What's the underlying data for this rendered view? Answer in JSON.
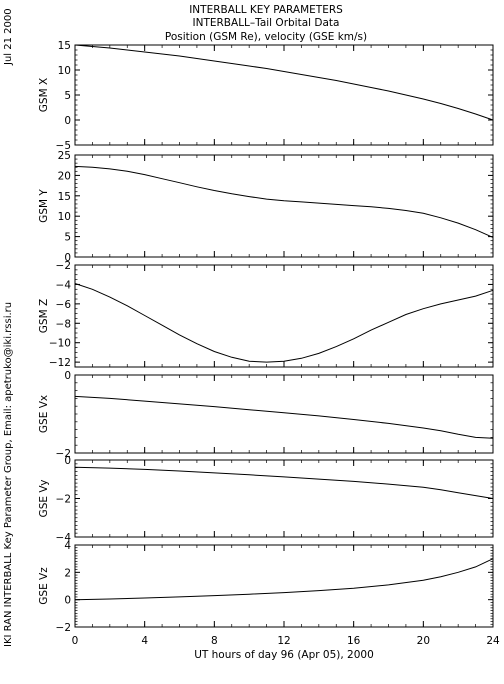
{
  "side_left_top": "Jul 21 2000",
  "side_left_bottom": "IKI RAN INTERBALL Key Parameter Group, Email: apetruko@iki.rssi.ru",
  "chart_data": {
    "type": "line",
    "title_lines": [
      "INTERBALL KEY PARAMETERS",
      "INTERBALL–Tail Orbital Data",
      "Position (GSM Re), velocity (GSE km/s)"
    ],
    "xlabel": "UT hours of day  96 (Apr 05), 2000",
    "xlim": [
      0,
      24
    ],
    "xticks": [
      0,
      4,
      8,
      12,
      16,
      20,
      24
    ],
    "xtick_labels": [
      "0",
      "4",
      "8",
      "12",
      "16",
      "20",
      "24"
    ],
    "panels": [
      {
        "ylabel": "GSM X",
        "ylim": [
          -5,
          15
        ],
        "yticks": [
          -5,
          0,
          5,
          10,
          15
        ],
        "ytick_labels": [
          "−5",
          "0",
          "5",
          "10",
          "15"
        ],
        "x": [
          0,
          1,
          2,
          3,
          4,
          5,
          6,
          7,
          8,
          9,
          10,
          11,
          12,
          13,
          14,
          15,
          16,
          17,
          18,
          19,
          20,
          21,
          22,
          23,
          24
        ],
        "y": [
          15.0,
          14.7,
          14.4,
          14.0,
          13.6,
          13.2,
          12.8,
          12.3,
          11.8,
          11.3,
          10.8,
          10.3,
          9.7,
          9.1,
          8.5,
          7.9,
          7.2,
          6.5,
          5.8,
          5.0,
          4.2,
          3.3,
          2.3,
          1.2,
          0.0
        ]
      },
      {
        "ylabel": "GSM Y",
        "ylim": [
          0,
          25
        ],
        "yticks": [
          0,
          5,
          10,
          15,
          20,
          25
        ],
        "ytick_labels": [
          "0",
          "5",
          "10",
          "15",
          "20",
          "25"
        ],
        "x": [
          0,
          1,
          2,
          3,
          4,
          5,
          6,
          7,
          8,
          9,
          10,
          11,
          12,
          13,
          14,
          15,
          16,
          17,
          18,
          19,
          20,
          21,
          22,
          23,
          24
        ],
        "y": [
          22.2,
          22.0,
          21.6,
          21.0,
          20.2,
          19.2,
          18.2,
          17.2,
          16.3,
          15.5,
          14.8,
          14.2,
          13.8,
          13.5,
          13.2,
          12.9,
          12.6,
          12.3,
          11.9,
          11.4,
          10.7,
          9.6,
          8.3,
          6.7,
          4.8
        ]
      },
      {
        "ylabel": "GSM Z",
        "ylim": [
          -12.5,
          -2
        ],
        "yticks": [
          -12,
          -10,
          -8,
          -6,
          -4,
          -2
        ],
        "ytick_labels": [
          "−12",
          "−10",
          "−8",
          "−6",
          "−4",
          "−2"
        ],
        "x": [
          0,
          1,
          2,
          3,
          4,
          5,
          6,
          7,
          8,
          9,
          10,
          11,
          12,
          13,
          14,
          15,
          16,
          17,
          18,
          19,
          20,
          21,
          22,
          23,
          24
        ],
        "y": [
          -3.9,
          -4.5,
          -5.3,
          -6.2,
          -7.2,
          -8.2,
          -9.2,
          -10.1,
          -10.9,
          -11.5,
          -11.9,
          -12.0,
          -11.9,
          -11.6,
          -11.1,
          -10.4,
          -9.6,
          -8.7,
          -7.9,
          -7.1,
          -6.5,
          -6.0,
          -5.6,
          -5.2,
          -4.6
        ]
      },
      {
        "ylabel": "GSE Vx",
        "ylim": [
          -2,
          0
        ],
        "yticks": [
          -2,
          0
        ],
        "ytick_labels": [
          "−2",
          "0"
        ],
        "x": [
          0,
          2,
          4,
          6,
          8,
          10,
          12,
          14,
          16,
          18,
          20,
          21,
          22,
          23,
          24
        ],
        "y": [
          -0.55,
          -0.6,
          -0.67,
          -0.74,
          -0.81,
          -0.89,
          -0.97,
          -1.05,
          -1.14,
          -1.24,
          -1.36,
          -1.43,
          -1.52,
          -1.6,
          -1.62
        ]
      },
      {
        "ylabel": "GSE Vy",
        "ylim": [
          -4,
          0
        ],
        "yticks": [
          -4,
          -2,
          0
        ],
        "ytick_labels": [
          "−4",
          "−2",
          "0"
        ],
        "x": [
          0,
          2,
          4,
          6,
          8,
          10,
          12,
          14,
          16,
          18,
          20,
          21,
          22,
          23,
          24
        ],
        "y": [
          -0.38,
          -0.42,
          -0.49,
          -0.57,
          -0.67,
          -0.77,
          -0.88,
          -0.99,
          -1.11,
          -1.25,
          -1.42,
          -1.55,
          -1.7,
          -1.85,
          -2.0
        ]
      },
      {
        "ylabel": "GSE Vz",
        "ylim": [
          -2,
          4
        ],
        "yticks": [
          -2,
          0,
          2,
          4
        ],
        "ytick_labels": [
          "−2",
          "0",
          "2",
          "4"
        ],
        "x": [
          0,
          2,
          4,
          6,
          8,
          10,
          12,
          14,
          16,
          18,
          20,
          21,
          22,
          23,
          24
        ],
        "y": [
          0.0,
          0.05,
          0.12,
          0.2,
          0.3,
          0.4,
          0.52,
          0.66,
          0.84,
          1.08,
          1.42,
          1.68,
          2.0,
          2.4,
          3.0
        ]
      }
    ]
  }
}
